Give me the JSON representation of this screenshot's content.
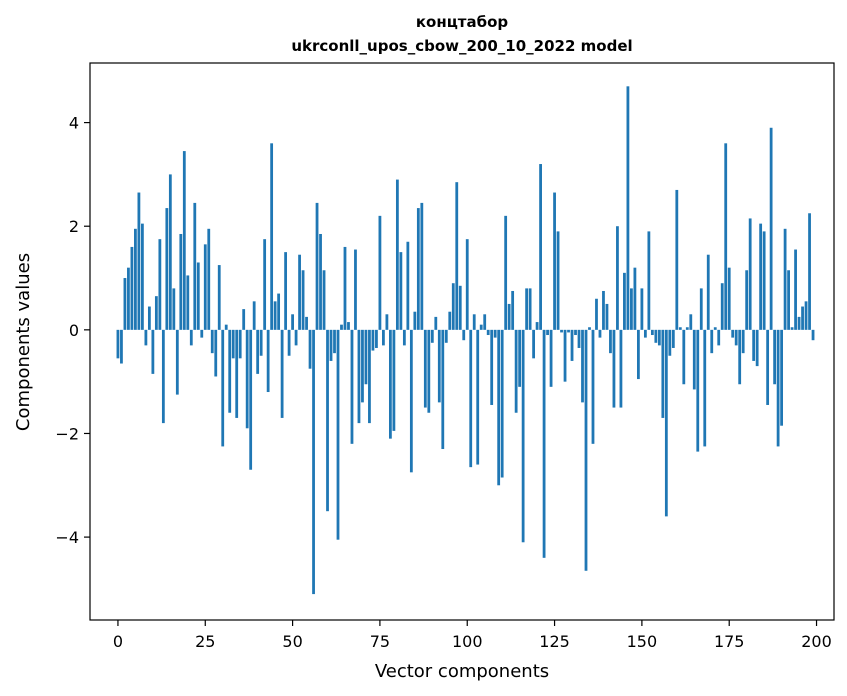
{
  "chart_data": {
    "type": "bar",
    "title": "концтабор",
    "subtitle": "ukrconll_upos_cbow_200_10_2022 model",
    "xlabel": "Vector components",
    "ylabel": "Components values",
    "xlim": [
      -8,
      205
    ],
    "ylim": [
      -5.6,
      5.15
    ],
    "xticks": [
      0,
      25,
      50,
      75,
      100,
      125,
      150,
      175,
      200
    ],
    "yticks": [
      -4,
      -2,
      0,
      2,
      4
    ],
    "ytick_labels": [
      "−4",
      "−2",
      "0",
      "2",
      "4"
    ],
    "bar_color": "#1f77b4",
    "grid": false,
    "x": [
      0,
      1,
      2,
      3,
      4,
      5,
      6,
      7,
      8,
      9,
      10,
      11,
      12,
      13,
      14,
      15,
      16,
      17,
      18,
      19,
      20,
      21,
      22,
      23,
      24,
      25,
      26,
      27,
      28,
      29,
      30,
      31,
      32,
      33,
      34,
      35,
      36,
      37,
      38,
      39,
      40,
      41,
      42,
      43,
      44,
      45,
      46,
      47,
      48,
      49,
      50,
      51,
      52,
      53,
      54,
      55,
      56,
      57,
      58,
      59,
      60,
      61,
      62,
      63,
      64,
      65,
      66,
      67,
      68,
      69,
      70,
      71,
      72,
      73,
      74,
      75,
      76,
      77,
      78,
      79,
      80,
      81,
      82,
      83,
      84,
      85,
      86,
      87,
      88,
      89,
      90,
      91,
      92,
      93,
      94,
      95,
      96,
      97,
      98,
      99,
      100,
      101,
      102,
      103,
      104,
      105,
      106,
      107,
      108,
      109,
      110,
      111,
      112,
      113,
      114,
      115,
      116,
      117,
      118,
      119,
      120,
      121,
      122,
      123,
      124,
      125,
      126,
      127,
      128,
      129,
      130,
      131,
      132,
      133,
      134,
      135,
      136,
      137,
      138,
      139,
      140,
      141,
      142,
      143,
      144,
      145,
      146,
      147,
      148,
      149,
      150,
      151,
      152,
      153,
      154,
      155,
      156,
      157,
      158,
      159,
      160,
      161,
      162,
      163,
      164,
      165,
      166,
      167,
      168,
      169,
      170,
      171,
      172,
      173,
      174,
      175,
      176,
      177,
      178,
      179,
      180,
      181,
      182,
      183,
      184,
      185,
      186,
      187,
      188,
      189,
      190,
      191,
      192,
      193,
      194,
      195,
      196,
      197,
      198,
      199
    ],
    "values": [
      -0.55,
      -0.65,
      1.0,
      1.2,
      1.6,
      1.95,
      2.65,
      2.05,
      -0.3,
      0.45,
      -0.85,
      0.65,
      1.75,
      -1.8,
      2.35,
      3.0,
      0.8,
      -1.25,
      1.85,
      3.45,
      1.05,
      -0.3,
      2.45,
      1.3,
      -0.15,
      1.65,
      1.95,
      -0.45,
      -0.9,
      1.25,
      -2.25,
      0.1,
      -1.6,
      -0.55,
      -1.7,
      -0.55,
      0.4,
      -1.9,
      -2.7,
      0.55,
      -0.85,
      -0.5,
      1.75,
      -1.2,
      3.6,
      0.55,
      0.7,
      -1.7,
      1.5,
      -0.5,
      0.3,
      -0.3,
      1.45,
      1.15,
      0.25,
      -0.75,
      -5.1,
      2.45,
      1.85,
      1.15,
      -3.5,
      -0.6,
      -0.45,
      -4.05,
      0.1,
      1.6,
      0.15,
      -2.2,
      1.55,
      -1.8,
      -1.4,
      -1.05,
      -1.8,
      -0.4,
      -0.35,
      2.2,
      -0.3,
      0.3,
      -2.1,
      -1.95,
      2.9,
      1.5,
      -0.3,
      1.7,
      -2.75,
      0.35,
      2.35,
      2.45,
      -1.5,
      -1.6,
      -0.25,
      0.25,
      -1.4,
      -2.3,
      -0.25,
      0.35,
      0.9,
      2.85,
      0.85,
      -0.2,
      1.75,
      -2.65,
      0.3,
      -2.6,
      0.1,
      0.3,
      -0.1,
      -1.45,
      -0.15,
      -3.0,
      -2.85,
      2.2,
      0.5,
      0.75,
      -1.6,
      -1.1,
      -4.1,
      0.8,
      0.8,
      -0.55,
      0.15,
      3.2,
      -4.4,
      -0.1,
      -1.1,
      2.65,
      1.9,
      -0.05,
      -1.0,
      -0.05,
      -0.6,
      -0.1,
      -0.35,
      -1.4,
      -4.65,
      0.05,
      -2.2,
      0.6,
      -0.15,
      0.75,
      0.5,
      -0.45,
      -1.5,
      2.0,
      -1.5,
      1.1,
      4.7,
      0.8,
      1.2,
      -0.95,
      0.8,
      -0.15,
      1.9,
      -0.1,
      -0.25,
      -0.3,
      -1.7,
      -3.6,
      -0.5,
      -0.35,
      2.7,
      0.05,
      -1.05,
      0.05,
      0.3,
      -1.15,
      -2.35,
      0.8,
      -2.25,
      1.45,
      -0.45,
      0.05,
      -0.3,
      0.9,
      3.6,
      1.2,
      -0.15,
      -0.3,
      -1.05,
      -0.45,
      1.15,
      2.15,
      -0.6,
      -0.7,
      2.05,
      1.9,
      -1.45,
      3.9,
      -1.05,
      -2.25,
      -1.85,
      1.95,
      1.15,
      0.05,
      1.55,
      0.25,
      0.45,
      0.55,
      2.25,
      -0.2
    ]
  }
}
